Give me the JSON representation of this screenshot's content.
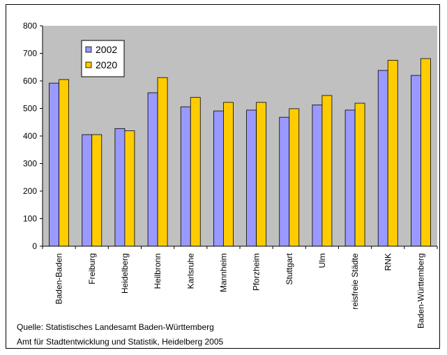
{
  "chart_data": {
    "type": "bar",
    "title": "",
    "xlabel": "",
    "ylabel": "",
    "ylim": [
      0,
      800
    ],
    "yticks": [
      0,
      100,
      200,
      300,
      400,
      500,
      600,
      700,
      800
    ],
    "grid": false,
    "legend_position": "top-left",
    "categories": [
      "Baden-Baden",
      "Freiburg",
      "Heidelberg",
      "Heilbronn",
      "Karlsruhe",
      "Mannheim",
      "Pforzheim",
      "Stuttgart",
      "Ulm",
      "reisfreie Städte",
      "RNK",
      "Baden-Württemberg"
    ],
    "series": [
      {
        "name": "2002",
        "color": "#9999ff",
        "values": [
          592,
          405,
          427,
          557,
          506,
          491,
          494,
          468,
          513,
          494,
          638,
          620
        ]
      },
      {
        "name": "2020",
        "color": "#ffcc00",
        "values": [
          605,
          405,
          419,
          612,
          540,
          522,
          522,
          499,
          547,
          519,
          675,
          681
        ]
      }
    ],
    "plot_background": "#c0c0c0"
  },
  "source": {
    "line1": "Quelle: Statistisches Landesamt Baden-Württemberg",
    "line2": "Amt für Stadtentwicklung und Statistik, Heidelberg 2005"
  }
}
